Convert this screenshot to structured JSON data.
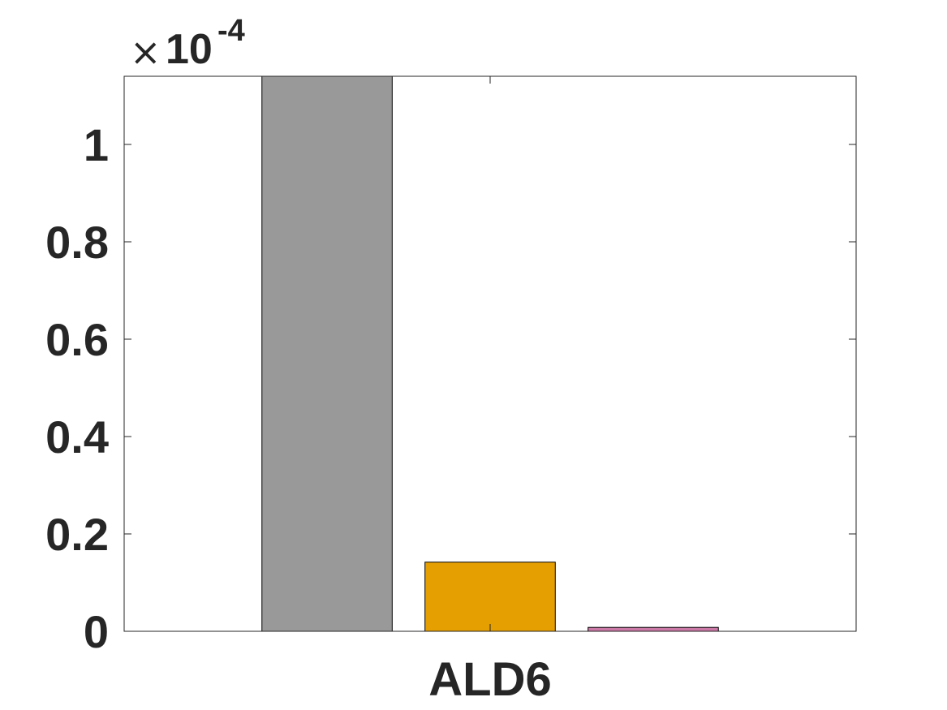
{
  "chart_data": {
    "type": "bar",
    "categories": [
      "ALD6"
    ],
    "series": [
      {
        "values": [
          0.000114
        ],
        "color": "#999999"
      },
      {
        "values": [
          1.42e-05
        ],
        "color": "#E69F00"
      },
      {
        "values": [
          8e-07
        ],
        "color": "#CC79A7"
      }
    ],
    "ylim": [
      0,
      0.000114
    ],
    "yticks": [
      {
        "value": 0,
        "label": "0"
      },
      {
        "value": 2e-05,
        "label": "0.2"
      },
      {
        "value": 4e-05,
        "label": "0.4"
      },
      {
        "value": 6e-05,
        "label": "0.6"
      },
      {
        "value": 8e-05,
        "label": "0.8"
      },
      {
        "value": 0.0001,
        "label": "1"
      }
    ],
    "exponent": {
      "times": "×",
      "base": "10",
      "power": "-4"
    },
    "grid": false,
    "title": "",
    "xlabel": "",
    "ylabel": ""
  }
}
